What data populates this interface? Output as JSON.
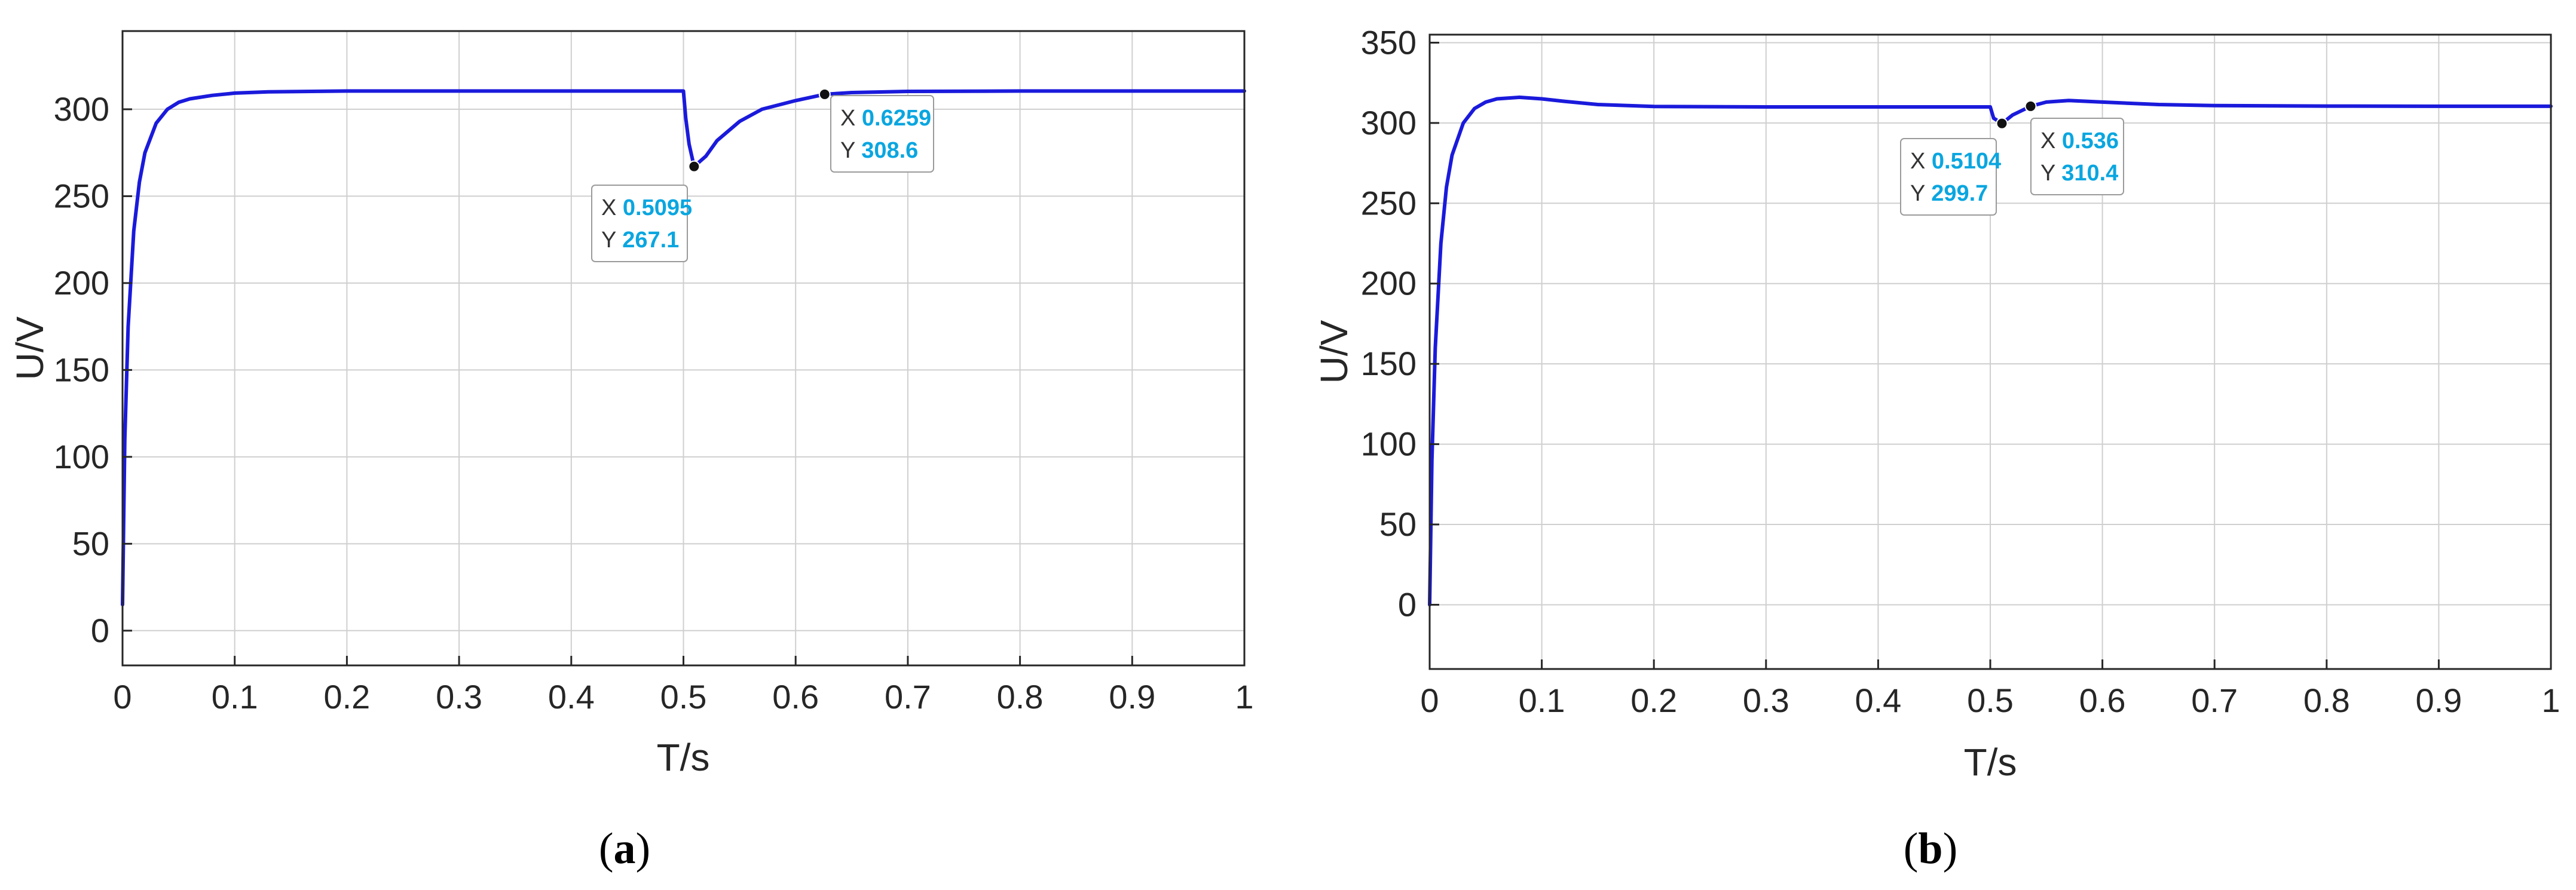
{
  "colors": {
    "line": "#1a1adc",
    "grid": "#cfcfcf",
    "axis": "#262626",
    "datatip_value": "#0aa6e0"
  },
  "chart_data": [
    {
      "type": "line",
      "caption": {
        "open": "(",
        "letter": "a",
        "close": ")"
      },
      "xlabel": "T/s",
      "ylabel": "U/V",
      "xlim": [
        0,
        1
      ],
      "ylim": [
        -20,
        345
      ],
      "xticks": [
        "0",
        "0.1",
        "0.2",
        "0.3",
        "0.4",
        "0.5",
        "0.6",
        "0.7",
        "0.8",
        "0.9",
        "1"
      ],
      "yticks": [
        "0",
        "50",
        "100",
        "150",
        "200",
        "250",
        "300"
      ],
      "grid": true,
      "series": [
        {
          "x": [
            0,
            0.002,
            0.005,
            0.01,
            0.015,
            0.02,
            0.03,
            0.04,
            0.05,
            0.06,
            0.08,
            0.1,
            0.13,
            0.2,
            0.3,
            0.4,
            0.5,
            0.502,
            0.505,
            0.5095,
            0.52,
            0.53,
            0.55,
            0.57,
            0.6,
            0.6259,
            0.65,
            0.7,
            0.8,
            0.9,
            1
          ],
          "y": [
            15,
            110,
            175,
            230,
            258,
            275,
            292,
            300,
            304,
            306,
            308,
            309.3,
            310,
            310.5,
            310.5,
            310.5,
            310.5,
            295,
            280,
            267.1,
            273,
            282,
            293,
            300,
            305,
            308.6,
            309.6,
            310.3,
            310.5,
            310.5,
            310.5
          ]
        }
      ],
      "datatips": [
        {
          "x_key": "X",
          "x_value": "0.5095",
          "y_key": "Y",
          "y_value": "267.1",
          "x": 0.5095,
          "y": 267.1
        },
        {
          "x_key": "X",
          "x_value": "0.6259",
          "y_key": "Y",
          "y_value": "308.6",
          "x": 0.6259,
          "y": 308.6
        }
      ]
    },
    {
      "type": "line",
      "caption": {
        "open": "(",
        "letter": "b",
        "close": ")"
      },
      "xlabel": "T/s",
      "ylabel": "U/V",
      "xlim": [
        0,
        1
      ],
      "ylim": [
        -40,
        355
      ],
      "xticks": [
        "0",
        "0.1",
        "0.2",
        "0.3",
        "0.4",
        "0.5",
        "0.6",
        "0.7",
        "0.8",
        "0.9",
        "1"
      ],
      "yticks": [
        "0",
        "50",
        "100",
        "150",
        "200",
        "250",
        "300",
        "350"
      ],
      "grid": true,
      "series": [
        {
          "x": [
            0,
            0.002,
            0.005,
            0.01,
            0.015,
            0.02,
            0.03,
            0.04,
            0.05,
            0.06,
            0.08,
            0.1,
            0.12,
            0.15,
            0.2,
            0.3,
            0.4,
            0.5,
            0.503,
            0.5104,
            0.52,
            0.536,
            0.55,
            0.57,
            0.6,
            0.65,
            0.7,
            0.8,
            0.9,
            1
          ],
          "y": [
            0,
            90,
            160,
            225,
            260,
            280,
            300,
            309,
            313,
            315,
            316,
            315,
            313.5,
            311.5,
            310.3,
            310,
            310,
            310,
            303,
            299.7,
            305,
            310.4,
            313,
            314,
            313,
            311.5,
            310.8,
            310.5,
            310.4,
            310.4
          ]
        }
      ],
      "datatips": [
        {
          "x_key": "X",
          "x_value": "0.5104",
          "y_key": "Y",
          "y_value": "299.7",
          "x": 0.5104,
          "y": 299.7
        },
        {
          "x_key": "X",
          "x_value": "0.536",
          "y_key": "Y",
          "y_value": "310.4",
          "x": 0.536,
          "y": 310.4
        }
      ]
    }
  ]
}
